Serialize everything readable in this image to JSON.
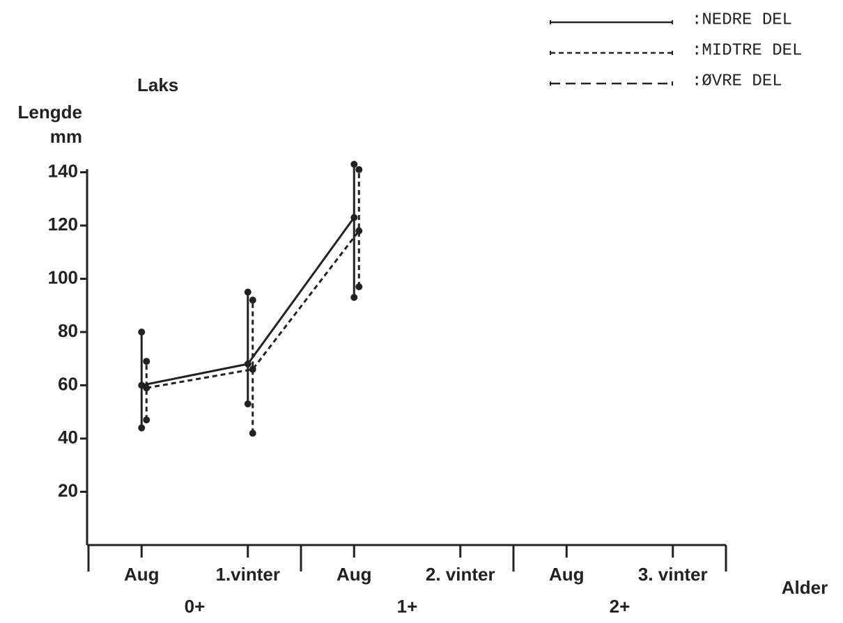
{
  "chart_data": {
    "type": "line",
    "title": "Laks",
    "y_label_lines": [
      "Lengde",
      "mm"
    ],
    "x_label": "Alder",
    "categories": [
      "Aug",
      "1.vinter",
      "Aug",
      "2. vinter",
      "Aug",
      "3. vinter"
    ],
    "groups": [
      "0+",
      "1+",
      "2+"
    ],
    "ylim": [
      0,
      140
    ],
    "yticks": [
      20,
      40,
      60,
      80,
      100,
      120,
      140
    ],
    "series": [
      {
        "name": ":NEDRE DEL",
        "color": "#222222",
        "dash": "solid",
        "values": [
          60,
          68,
          123,
          null,
          null,
          null
        ],
        "low": [
          44,
          53,
          93,
          null,
          null,
          null
        ],
        "high": [
          80,
          95,
          143,
          null,
          null,
          null
        ]
      },
      {
        "name": ":MIDTRE DEL",
        "color": "#222222",
        "dash": "short",
        "values": [
          59,
          66,
          118,
          null,
          null,
          null
        ],
        "low": [
          47,
          42,
          97,
          null,
          null,
          null
        ],
        "high": [
          69,
          92,
          141,
          null,
          null,
          null
        ]
      },
      {
        "name": ":ØVRE DEL",
        "color": "#222222",
        "dash": "long",
        "values": [
          null,
          null,
          null,
          null,
          null,
          null
        ]
      }
    ]
  }
}
